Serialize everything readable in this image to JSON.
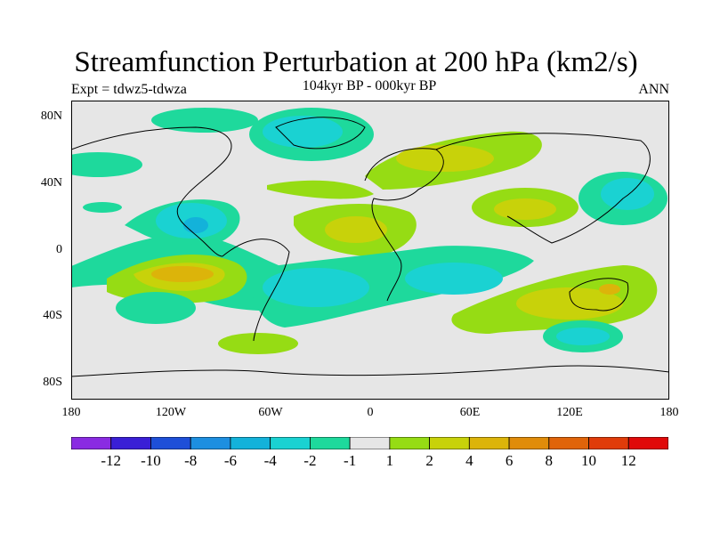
{
  "title": "Streamfunction Perturbation at 200 hPa (km2/s)",
  "subtitle_left": "Expt = tdwz5-tdwza",
  "subtitle_center": "104kyr BP - 000kyr BP",
  "subtitle_right": "ANN",
  "lat_labels": [
    "80N",
    "40N",
    "0",
    "40S",
    "80S"
  ],
  "lon_labels": [
    "180",
    "120W",
    "60W",
    "0",
    "60E",
    "120E",
    "180"
  ],
  "colorbar": {
    "colors": [
      "#8a2be2",
      "#3a1fd6",
      "#1e4fd8",
      "#1d8fe0",
      "#13b2da",
      "#1ad2d2",
      "#1ed99c",
      "#e6e6e6",
      "#96dc14",
      "#c8d20a",
      "#dcb40a",
      "#e08c0a",
      "#e0640a",
      "#e03c0a",
      "#e00a0a"
    ],
    "labels": [
      "-12",
      "-10",
      "-8",
      "-6",
      "-4",
      "-2",
      "-1",
      "1",
      "2",
      "4",
      "6",
      "8",
      "10",
      "12"
    ]
  },
  "map_colors": {
    "background": "#e6e6e6",
    "light_green": "#96dc14",
    "yellow": "#c8d20a",
    "orange": "#dcb40a",
    "mint": "#1ed99c",
    "cyan": "#1ad2d2",
    "blue": "#13b2da"
  }
}
